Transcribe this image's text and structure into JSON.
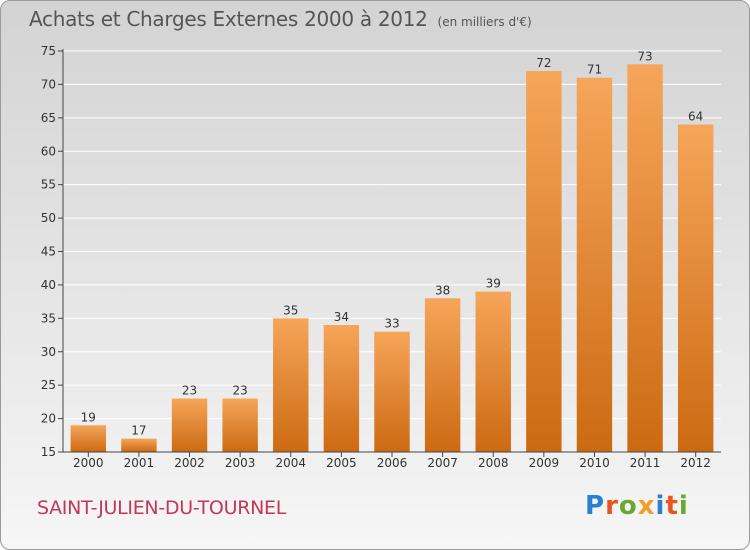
{
  "title": "Achats et Charges Externes 2000 à 2012",
  "subtitle": "(en milliers d'€)",
  "town": "SAINT-JULIEN-DU-TOURNEL",
  "brand": {
    "text": "Proxiti",
    "letters": [
      {
        "ch": "P",
        "color": "#2b7fd0"
      },
      {
        "ch": "r",
        "color": "#e8551f"
      },
      {
        "ch": "o",
        "color": "#6aa832"
      },
      {
        "ch": "x",
        "color": "#f0a02a"
      },
      {
        "ch": "i",
        "color": "#2b7fd0"
      },
      {
        "ch": "t",
        "color": "#e8551f"
      },
      {
        "ch": "i",
        "color": "#6aa832"
      }
    ]
  },
  "colors": {
    "bar_top": "#f6a55a",
    "bar_bottom": "#cc6a12",
    "axis": "#444444",
    "label": "#333333",
    "grid": "#ffffff"
  },
  "chart_data": {
    "type": "bar",
    "categories": [
      "2000",
      "2001",
      "2002",
      "2003",
      "2004",
      "2005",
      "2006",
      "2007",
      "2008",
      "2009",
      "2010",
      "2011",
      "2012"
    ],
    "values": [
      19,
      17,
      23,
      23,
      35,
      34,
      33,
      38,
      39,
      72,
      71,
      73,
      64
    ],
    "ylim": [
      15,
      75
    ],
    "yticks": [
      15,
      20,
      25,
      30,
      35,
      40,
      45,
      50,
      55,
      60,
      65,
      70,
      75
    ],
    "grid": true,
    "data_labels": true,
    "xlabel": "",
    "ylabel": ""
  }
}
